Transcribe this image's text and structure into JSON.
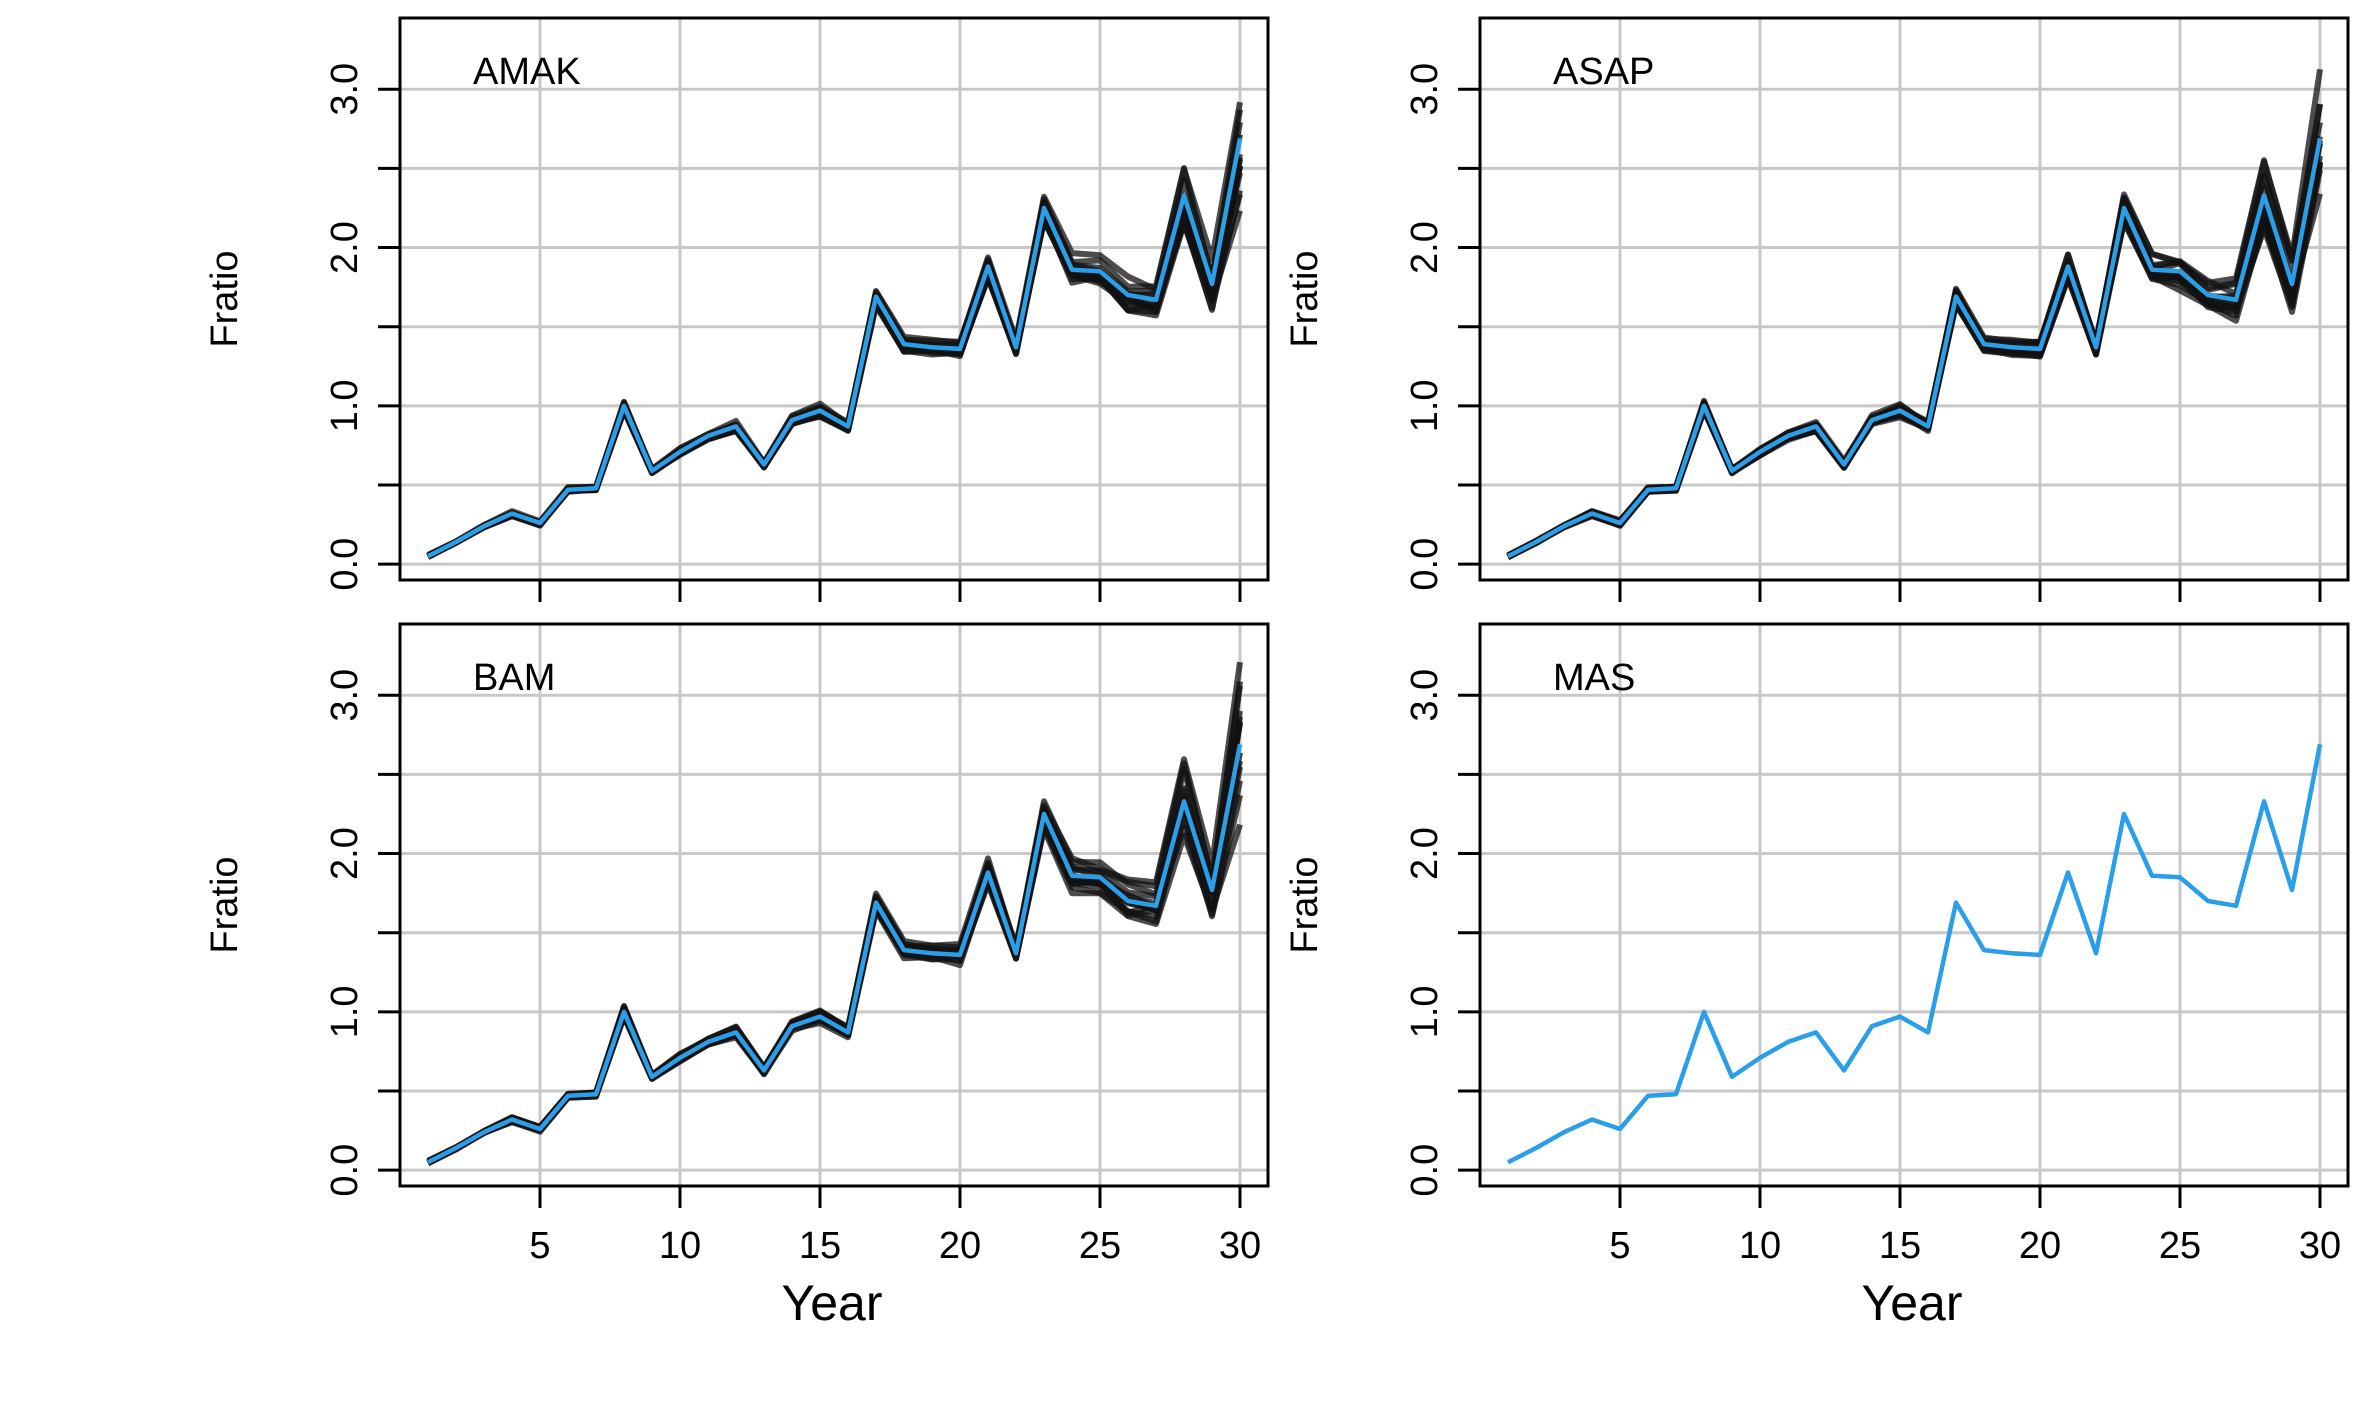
{
  "chart_data": {
    "type": "line",
    "layout": "2x2 small multiples",
    "xlabel": "Year",
    "ylabel": "Fratio",
    "xlim": [
      0,
      31
    ],
    "ylim": [
      -0.1,
      3.45
    ],
    "x_ticks": [
      5,
      10,
      15,
      20,
      25,
      30
    ],
    "x_tick_labels": [
      "5",
      "10",
      "15",
      "20",
      "25",
      "30"
    ],
    "y_ticks": [
      0.0,
      0.5,
      1.0,
      1.5,
      2.0,
      2.5,
      3.0
    ],
    "y_tick_labels": [
      "0.0",
      "",
      "1.0",
      "",
      "2.0",
      "",
      "3.0"
    ],
    "grid": true,
    "colors": {
      "true_line": "#2a9ee8",
      "ensemble": "#111111"
    },
    "x": [
      1,
      2,
      3,
      4,
      5,
      6,
      7,
      8,
      9,
      10,
      11,
      12,
      13,
      14,
      15,
      16,
      17,
      18,
      19,
      20,
      21,
      22,
      23,
      24,
      25,
      26,
      27,
      28,
      29,
      30
    ],
    "true_values": [
      0.05,
      0.14,
      0.24,
      0.32,
      0.26,
      0.47,
      0.48,
      1.0,
      0.59,
      0.71,
      0.81,
      0.87,
      0.63,
      0.91,
      0.97,
      0.87,
      1.69,
      1.39,
      1.37,
      1.36,
      1.88,
      1.37,
      2.25,
      1.86,
      1.85,
      1.7,
      1.67,
      2.33,
      1.77,
      2.69
    ],
    "ensemble_spread": [
      0.01,
      0.01,
      0.01,
      0.02,
      0.02,
      0.02,
      0.02,
      0.04,
      0.02,
      0.03,
      0.03,
      0.04,
      0.03,
      0.04,
      0.05,
      0.04,
      0.07,
      0.06,
      0.06,
      0.07,
      0.1,
      0.06,
      0.11,
      0.12,
      0.13,
      0.14,
      0.16,
      0.28,
      0.22,
      0.55
    ],
    "panels": [
      {
        "label": "AMAK",
        "has_ensemble": true,
        "ensemble_count": 14
      },
      {
        "label": "ASAP",
        "has_ensemble": true,
        "ensemble_count": 14
      },
      {
        "label": "BAM",
        "has_ensemble": true,
        "ensemble_count": 14
      },
      {
        "label": "MAS",
        "has_ensemble": false,
        "ensemble_count": 0
      }
    ]
  }
}
